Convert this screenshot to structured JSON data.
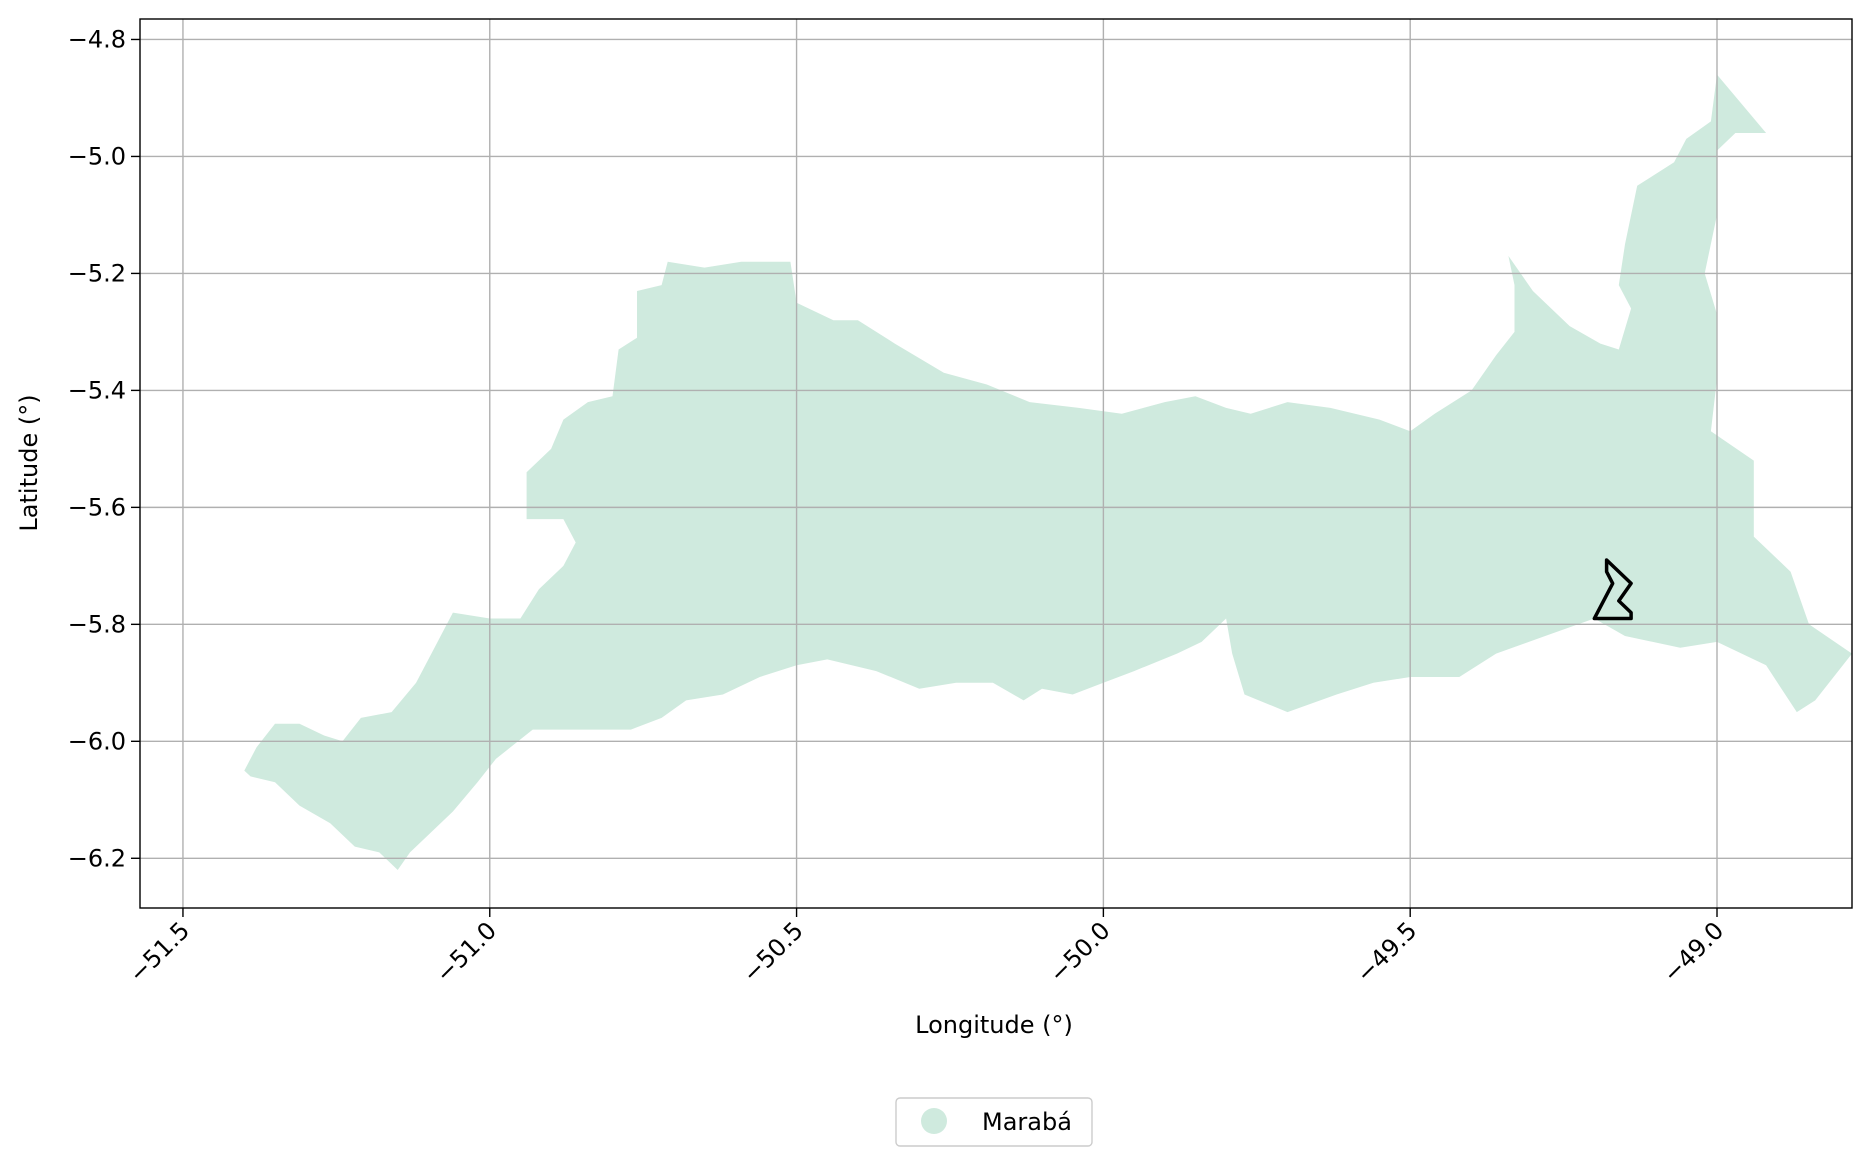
{
  "figure": {
    "xlabel": "Longitude (°)",
    "ylabel": "Latitude (°)",
    "xlim": [
      -51.57,
      -48.78
    ],
    "ylim": [
      -6.285,
      -4.765
    ],
    "xticks": [
      -51.5,
      -51.0,
      -50.5,
      -50.0,
      -49.5,
      -49.0
    ],
    "xtick_labels": [
      "−51.5",
      "−51.0",
      "−50.5",
      "−50.0",
      "−49.5",
      "−49.0"
    ],
    "yticks": [
      -4.8,
      -5.0,
      -5.2,
      -5.4,
      -5.6,
      -5.8,
      -6.0,
      -6.2
    ],
    "ytick_labels": [
      "−4.8",
      "−5.0",
      "−5.2",
      "−5.4",
      "−5.6",
      "−5.8",
      "−6.0",
      "−6.2"
    ],
    "grid": true,
    "legend": {
      "label": "Marabá",
      "placement": "bottom-center",
      "color": "#cfeade"
    }
  },
  "colors": {
    "region_fill": "#cfeade",
    "outline": "#000000",
    "grid": "#b0b0b0"
  },
  "map": {
    "region": {
      "name": "Marabá",
      "coords": [
        [
          -51.4,
          -6.05
        ],
        [
          -51.38,
          -6.01
        ],
        [
          -51.35,
          -5.97
        ],
        [
          -51.31,
          -5.97
        ],
        [
          -51.27,
          -5.99
        ],
        [
          -51.24,
          -6.0
        ],
        [
          -51.21,
          -5.96
        ],
        [
          -51.16,
          -5.95
        ],
        [
          -51.12,
          -5.9
        ],
        [
          -51.09,
          -5.84
        ],
        [
          -51.06,
          -5.78
        ],
        [
          -51.0,
          -5.79
        ],
        [
          -50.95,
          -5.79
        ],
        [
          -50.92,
          -5.74
        ],
        [
          -50.88,
          -5.7
        ],
        [
          -50.86,
          -5.66
        ],
        [
          -50.88,
          -5.62
        ],
        [
          -50.94,
          -5.62
        ],
        [
          -50.94,
          -5.54
        ],
        [
          -50.9,
          -5.5
        ],
        [
          -50.88,
          -5.45
        ],
        [
          -50.84,
          -5.42
        ],
        [
          -50.8,
          -5.41
        ],
        [
          -50.79,
          -5.33
        ],
        [
          -50.76,
          -5.31
        ],
        [
          -50.76,
          -5.23
        ],
        [
          -50.72,
          -5.22
        ],
        [
          -50.71,
          -5.18
        ],
        [
          -50.65,
          -5.19
        ],
        [
          -50.59,
          -5.18
        ],
        [
          -50.51,
          -5.18
        ],
        [
          -50.5,
          -5.25
        ],
        [
          -50.44,
          -5.28
        ],
        [
          -50.4,
          -5.28
        ],
        [
          -50.34,
          -5.32
        ],
        [
          -50.26,
          -5.37
        ],
        [
          -50.19,
          -5.39
        ],
        [
          -50.12,
          -5.42
        ],
        [
          -50.04,
          -5.43
        ],
        [
          -49.97,
          -5.44
        ],
        [
          -49.9,
          -5.42
        ],
        [
          -49.85,
          -5.41
        ],
        [
          -49.8,
          -5.43
        ],
        [
          -49.76,
          -5.44
        ],
        [
          -49.7,
          -5.42
        ],
        [
          -49.63,
          -5.43
        ],
        [
          -49.55,
          -5.45
        ],
        [
          -49.5,
          -5.47
        ],
        [
          -49.46,
          -5.44
        ],
        [
          -49.4,
          -5.4
        ],
        [
          -49.36,
          -5.34
        ],
        [
          -49.33,
          -5.3
        ],
        [
          -49.33,
          -5.22
        ],
        [
          -49.34,
          -5.17
        ],
        [
          -49.3,
          -5.23
        ],
        [
          -49.24,
          -5.29
        ],
        [
          -49.19,
          -5.32
        ],
        [
          -49.16,
          -5.33
        ],
        [
          -49.14,
          -5.26
        ],
        [
          -49.16,
          -5.22
        ],
        [
          -49.15,
          -5.15
        ],
        [
          -49.13,
          -5.05
        ],
        [
          -49.07,
          -5.01
        ],
        [
          -49.05,
          -4.97
        ],
        [
          -49.01,
          -4.94
        ],
        [
          -49.0,
          -4.86
        ],
        [
          -48.96,
          -4.91
        ],
        [
          -48.92,
          -4.96
        ],
        [
          -48.97,
          -4.96
        ],
        [
          -49.0,
          -4.99
        ],
        [
          -49.0,
          -5.1
        ],
        [
          -49.02,
          -5.2
        ],
        [
          -49.0,
          -5.27
        ],
        [
          -49.0,
          -5.38
        ],
        [
          -49.01,
          -5.47
        ],
        [
          -48.94,
          -5.52
        ],
        [
          -48.94,
          -5.65
        ],
        [
          -48.88,
          -5.71
        ],
        [
          -48.85,
          -5.8
        ],
        [
          -48.78,
          -5.85
        ],
        [
          -48.84,
          -5.93
        ],
        [
          -48.87,
          -5.95
        ],
        [
          -48.92,
          -5.87
        ],
        [
          -49.0,
          -5.83
        ],
        [
          -49.06,
          -5.84
        ],
        [
          -49.15,
          -5.82
        ],
        [
          -49.2,
          -5.79
        ],
        [
          -49.28,
          -5.82
        ],
        [
          -49.36,
          -5.85
        ],
        [
          -49.42,
          -5.89
        ],
        [
          -49.5,
          -5.89
        ],
        [
          -49.56,
          -5.9
        ],
        [
          -49.62,
          -5.92
        ],
        [
          -49.7,
          -5.95
        ],
        [
          -49.77,
          -5.92
        ],
        [
          -49.79,
          -5.85
        ],
        [
          -49.8,
          -5.79
        ],
        [
          -49.84,
          -5.83
        ],
        [
          -49.88,
          -5.85
        ],
        [
          -49.95,
          -5.88
        ],
        [
          -50.0,
          -5.9
        ],
        [
          -50.05,
          -5.92
        ],
        [
          -50.1,
          -5.91
        ],
        [
          -50.13,
          -5.93
        ],
        [
          -50.18,
          -5.9
        ],
        [
          -50.24,
          -5.9
        ],
        [
          -50.3,
          -5.91
        ],
        [
          -50.37,
          -5.88
        ],
        [
          -50.45,
          -5.86
        ],
        [
          -50.5,
          -5.87
        ],
        [
          -50.56,
          -5.89
        ],
        [
          -50.62,
          -5.92
        ],
        [
          -50.68,
          -5.93
        ],
        [
          -50.72,
          -5.96
        ],
        [
          -50.77,
          -5.98
        ],
        [
          -50.85,
          -5.98
        ],
        [
          -50.93,
          -5.98
        ],
        [
          -50.99,
          -6.03
        ],
        [
          -51.02,
          -6.07
        ],
        [
          -51.06,
          -6.12
        ],
        [
          -51.1,
          -6.16
        ],
        [
          -51.13,
          -6.19
        ],
        [
          -51.15,
          -6.22
        ],
        [
          -51.18,
          -6.19
        ],
        [
          -51.22,
          -6.18
        ],
        [
          -51.26,
          -6.14
        ],
        [
          -51.31,
          -6.11
        ],
        [
          -51.35,
          -6.07
        ],
        [
          -51.39,
          -6.06
        ]
      ]
    },
    "outline": {
      "coords": [
        [
          -49.18,
          -5.69
        ],
        [
          -49.14,
          -5.73
        ],
        [
          -49.16,
          -5.76
        ],
        [
          -49.14,
          -5.78
        ],
        [
          -49.14,
          -5.79
        ],
        [
          -49.2,
          -5.79
        ],
        [
          -49.17,
          -5.73
        ],
        [
          -49.18,
          -5.71
        ]
      ]
    }
  }
}
